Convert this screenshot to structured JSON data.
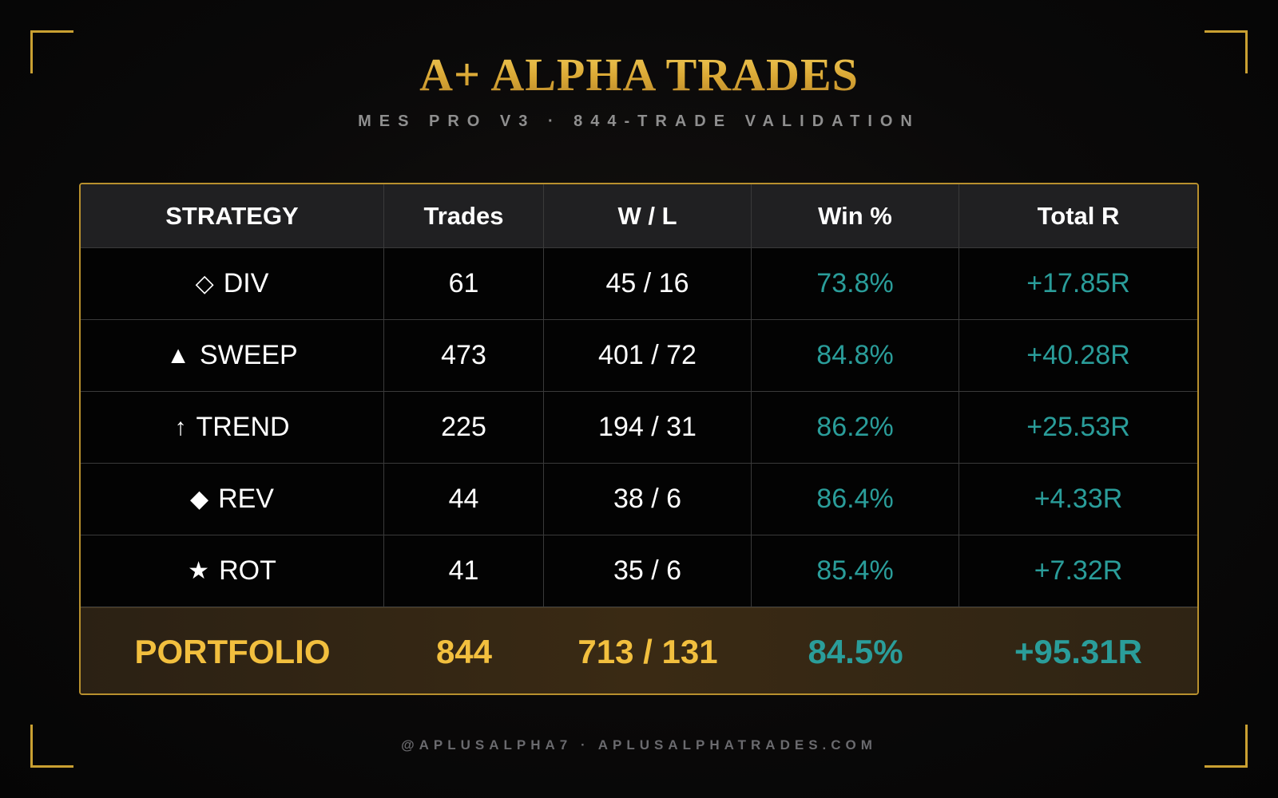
{
  "header": {
    "title": "A+ ALPHA TRADES",
    "subtitle": "MES PRO V3 · 844-TRADE VALIDATION"
  },
  "table": {
    "columns": [
      "STRATEGY",
      "Trades",
      "W / L",
      "Win %",
      "Total R"
    ],
    "rows": [
      {
        "icon": "◇",
        "icon_name": "diamond-outline-icon",
        "strategy": "DIV",
        "trades": "61",
        "wl": "45 / 16",
        "win_pct": "73.8%",
        "total_r": "+17.85R"
      },
      {
        "icon": "▲",
        "icon_name": "triangle-up-icon",
        "strategy": "SWEEP",
        "trades": "473",
        "wl": "401 / 72",
        "win_pct": "84.8%",
        "total_r": "+40.28R"
      },
      {
        "icon": "↑",
        "icon_name": "arrow-up-icon",
        "strategy": "TREND",
        "trades": "225",
        "wl": "194 / 31",
        "win_pct": "86.2%",
        "total_r": "+25.53R"
      },
      {
        "icon": "◆",
        "icon_name": "diamond-filled-icon",
        "strategy": "REV",
        "trades": "44",
        "wl": "38 / 6",
        "win_pct": "86.4%",
        "total_r": "+4.33R"
      },
      {
        "icon": "★",
        "icon_name": "star-icon",
        "strategy": "ROT",
        "trades": "41",
        "wl": "35 / 6",
        "win_pct": "85.4%",
        "total_r": "+7.32R"
      }
    ],
    "total": {
      "label": "PORTFOLIO",
      "trades": "844",
      "wl": "713 / 131",
      "win_pct": "84.5%",
      "total_r": "+95.31R"
    }
  },
  "footer": {
    "text": "@APLUSALPHA7 · APLUSALPHATRADES.COM"
  },
  "colors": {
    "gold": "#e2b23c",
    "teal": "#2a9d9a",
    "background": "#0a0909"
  }
}
